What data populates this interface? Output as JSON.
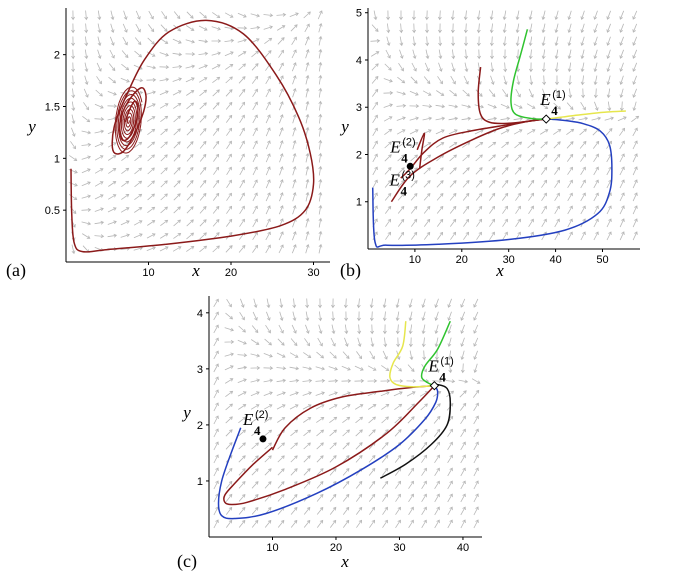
{
  "chart_data": [
    {
      "type": "line",
      "panel_label": "(a)",
      "xlabel": "x",
      "ylabel": "y",
      "xlim": [
        0,
        32
      ],
      "ylim": [
        0,
        2.45
      ],
      "x_ticks": [
        "10",
        "20",
        "30"
      ],
      "y_ticks": [
        "0.5",
        "1",
        "1.5",
        "2"
      ],
      "grid": false,
      "background": "direction field arrows",
      "series": [
        {
          "color": "#8b1a1a",
          "x": [
            0.6,
            0.7,
            1.0,
            2.0,
            5.0,
            12.0,
            20.0,
            26.0,
            29.0,
            30.0,
            29.6,
            28.2,
            25.5,
            21.5,
            17.0,
            12.5,
            9.5,
            7.4,
            6.0,
            5.6,
            5.9,
            7.0,
            8.4,
            9.4,
            9.7,
            9.2,
            8.0,
            6.9,
            6.5,
            6.8,
            7.6,
            8.5,
            8.7,
            8.3,
            7.6,
            7.2
          ],
          "y": [
            0.9,
            0.45,
            0.18,
            0.1,
            0.12,
            0.17,
            0.25,
            0.35,
            0.5,
            0.75,
            1.05,
            1.4,
            1.8,
            2.2,
            2.33,
            2.22,
            1.95,
            1.62,
            1.35,
            1.15,
            1.05,
            1.07,
            1.25,
            1.45,
            1.6,
            1.68,
            1.6,
            1.45,
            1.3,
            1.18,
            1.2,
            1.35,
            1.5,
            1.55,
            1.45,
            1.35
          ]
        }
      ]
    },
    {
      "type": "line",
      "panel_label": "(b)",
      "xlabel": "x",
      "ylabel": "y",
      "xlim": [
        0,
        58
      ],
      "ylim": [
        0,
        5.1
      ],
      "x_ticks": [
        "10",
        "20",
        "30",
        "40",
        "50"
      ],
      "y_ticks": [
        "1",
        "2",
        "3",
        "4",
        "5"
      ],
      "grid": false,
      "background": "direction field arrows",
      "points": [
        {
          "label": "E",
          "subscript": "4",
          "superscript": "(1)",
          "x": 38,
          "y": 2.75,
          "marker": "open diamond"
        },
        {
          "label": "E",
          "subscript": "4",
          "superscript": "(2)",
          "x": 9,
          "y": 1.75,
          "marker": "filled circle"
        },
        {
          "label": "E",
          "subscript": "4",
          "superscript": "(3)",
          "x": 8,
          "y": 1.3,
          "marker": "none"
        }
      ],
      "series": [
        {
          "color": "#2440c0",
          "x": [
            1.0,
            1.5,
            4.0,
            15.0,
            30.0,
            42.0,
            49.0,
            51.5,
            52.0,
            51.5,
            49.5,
            46.0,
            42.0,
            38.5
          ],
          "y": [
            1.3,
            0.15,
            0.08,
            0.1,
            0.2,
            0.4,
            0.75,
            1.2,
            1.7,
            2.2,
            2.5,
            2.65,
            2.72,
            2.75
          ]
        },
        {
          "color": "#8b1a1a",
          "x": [
            5.0,
            9.0,
            15.0,
            22.0,
            28.0,
            33.0,
            37.0,
            38.0
          ],
          "y": [
            1.0,
            1.55,
            1.95,
            2.3,
            2.55,
            2.68,
            2.74,
            2.75
          ]
        },
        {
          "color": "#8b1a1a",
          "x": [
            7.0,
            9.0,
            12.0,
            16.0,
            22.0,
            28.0,
            34.0,
            38.0
          ],
          "y": [
            1.5,
            1.7,
            2.05,
            2.35,
            2.5,
            2.6,
            2.7,
            2.75
          ]
        },
        {
          "color": "#8b1a1a",
          "x": [
            11.0,
            11.5,
            12.0,
            10.5
          ],
          "y": [
            1.7,
            2.1,
            2.45,
            2.1
          ]
        },
        {
          "color": "#8b1a1a",
          "x": [
            24.0,
            23.5,
            24.0,
            26.0,
            30.0,
            34.0,
            38.0
          ],
          "y": [
            3.85,
            3.3,
            2.85,
            2.68,
            2.66,
            2.7,
            2.75
          ]
        },
        {
          "color": "#2fc32f",
          "x": [
            34.0,
            32.5,
            31.0,
            30.5,
            31.5,
            35.0,
            38.0
          ],
          "y": [
            4.65,
            4.1,
            3.55,
            3.1,
            2.85,
            2.76,
            2.75
          ]
        },
        {
          "color": "#e6e64d",
          "x": [
            38.0,
            42.0,
            47.0,
            51.0,
            55.0
          ],
          "y": [
            2.75,
            2.8,
            2.86,
            2.9,
            2.92
          ]
        }
      ]
    },
    {
      "type": "line",
      "panel_label": "(c)",
      "xlabel": "x",
      "ylabel": "y",
      "xlim": [
        0,
        43
      ],
      "ylim": [
        0,
        4.3
      ],
      "x_ticks": [
        "10",
        "20",
        "30",
        "40"
      ],
      "y_ticks": [
        "1",
        "2",
        "3",
        "4"
      ],
      "grid": false,
      "background": "direction field arrows",
      "points": [
        {
          "label": "E",
          "subscript": "4",
          "superscript": "(1)",
          "x": 35.5,
          "y": 2.7,
          "marker": "open diamond"
        },
        {
          "label": "E",
          "subscript": "4",
          "superscript": "(2)",
          "x": 8.5,
          "y": 1.75,
          "marker": "filled circle"
        }
      ],
      "series": [
        {
          "color": "#8b1a1a",
          "x": [
            10.0,
            7.0,
            4.0,
            2.5,
            2.5,
            3.5,
            6.0,
            12.0,
            20.0,
            28.0,
            33.0,
            35.5
          ],
          "y": [
            1.6,
            1.3,
            0.95,
            0.75,
            0.62,
            0.58,
            0.62,
            0.85,
            1.25,
            1.85,
            2.4,
            2.7
          ]
        },
        {
          "color": "#8b1a1a",
          "x": [
            10.0,
            12.0,
            16.0,
            21.0,
            27.0,
            32.0,
            35.5
          ],
          "y": [
            1.55,
            1.95,
            2.3,
            2.5,
            2.6,
            2.67,
            2.7
          ]
        },
        {
          "color": "#2440c0",
          "x": [
            5.0,
            3.5,
            2.0,
            1.5,
            2.0,
            4.0,
            9.0,
            17.0,
            24.0,
            30.0,
            34.0,
            35.7,
            36.0,
            35.5
          ],
          "y": [
            1.95,
            1.5,
            1.0,
            0.6,
            0.38,
            0.33,
            0.42,
            0.78,
            1.2,
            1.65,
            2.1,
            2.4,
            2.6,
            2.7
          ]
        },
        {
          "color": "#111111",
          "x": [
            27.0,
            31.0,
            35.0,
            37.5,
            38.0,
            37.5,
            36.0,
            35.5
          ],
          "y": [
            1.05,
            1.3,
            1.65,
            2.0,
            2.4,
            2.65,
            2.72,
            2.7
          ]
        },
        {
          "color": "#e6e64d",
          "x": [
            31.0,
            30.5,
            29.0,
            28.5,
            29.5,
            32.0,
            35.5
          ],
          "y": [
            3.85,
            3.4,
            3.1,
            2.85,
            2.72,
            2.68,
            2.7
          ]
        },
        {
          "color": "#2fc32f",
          "x": [
            38.0,
            36.0,
            34.0,
            33.5,
            34.5,
            35.5
          ],
          "y": [
            3.85,
            3.35,
            3.05,
            2.85,
            2.75,
            2.7
          ]
        }
      ]
    }
  ]
}
